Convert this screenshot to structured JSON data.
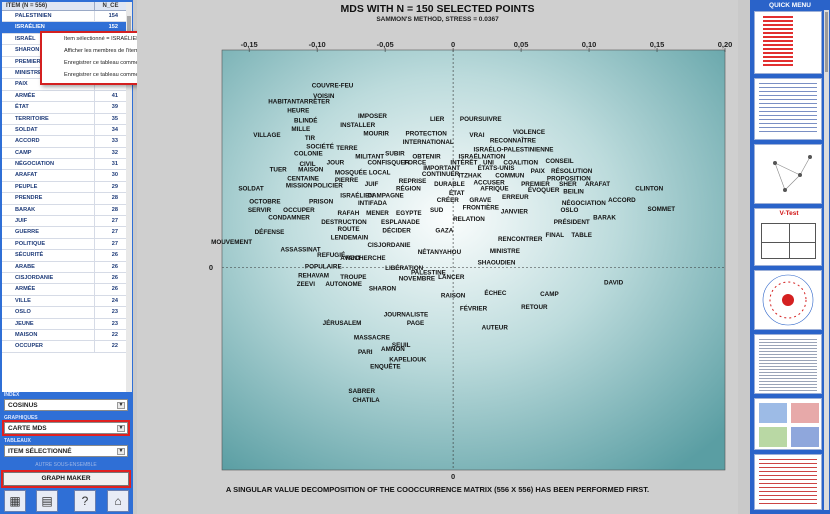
{
  "table": {
    "header_item": "ITEM (N = 556)",
    "header_count": "N_CE",
    "rows": [
      {
        "name": "PALESTINIEN",
        "count": "154"
      },
      {
        "name": "ISRAÉLIEN",
        "count": "152"
      },
      {
        "name": "ISRAËL",
        "count": ""
      },
      {
        "name": "SHARON",
        "count": ""
      },
      {
        "name": "PREMIER",
        "count": ""
      },
      {
        "name": "MINISTRE",
        "count": ""
      },
      {
        "name": "PAIX",
        "count": "46"
      },
      {
        "name": "ARMÉE",
        "count": "41"
      },
      {
        "name": "ÉTAT",
        "count": "39"
      },
      {
        "name": "TERRITOIRE",
        "count": "35"
      },
      {
        "name": "SOLDAT",
        "count": "34"
      },
      {
        "name": "ACCORD",
        "count": "33"
      },
      {
        "name": "CAMP",
        "count": "32"
      },
      {
        "name": "NÉGOCIATION",
        "count": "31"
      },
      {
        "name": "ARAFAT",
        "count": "30"
      },
      {
        "name": "PEUPLE",
        "count": "29"
      },
      {
        "name": "PRENDRE",
        "count": "28"
      },
      {
        "name": "BARAK",
        "count": "28"
      },
      {
        "name": "JUIF",
        "count": "27"
      },
      {
        "name": "GUERRE",
        "count": "27"
      },
      {
        "name": "POLITIQUE",
        "count": "27"
      },
      {
        "name": "SÉCURITÉ",
        "count": "26"
      },
      {
        "name": "ARABE",
        "count": "26"
      },
      {
        "name": "CISJORDANIE",
        "count": "26"
      },
      {
        "name": "ARMÉE",
        "count": "26"
      },
      {
        "name": "VILLE",
        "count": "24"
      },
      {
        "name": "OSLO",
        "count": "23"
      },
      {
        "name": "JEUNE",
        "count": "23"
      },
      {
        "name": "MAISON",
        "count": "22"
      },
      {
        "name": "OCCUPER",
        "count": "22"
      }
    ]
  },
  "context_menu": {
    "items": [
      "Item sélectionné = ISRAÉLIEN",
      "Afficher les membres de l'item sélectionné",
      "Enregistrer ce tableau comme fichier .xls",
      "Enregistrer ce tableau comme fichier .csv"
    ]
  },
  "controls": {
    "index_label": "INDEX",
    "index_value": "COSINUS",
    "graphiques_label": "GRAPHIQUES",
    "graphiques_value": "CARTE MDS",
    "tableaux_label": "TABLEAUX",
    "tableaux_value": "ITEM SÉLECTIONNÉ",
    "autre_label": "AUTRE SOUS-ENSEMBLE",
    "graph_maker": "GRAPH MAKER"
  },
  "quick_menu": {
    "title": "QUICK MENU",
    "vtest_label": "V-Test"
  },
  "chart_data": {
    "type": "scatter",
    "title": "MDS WITH N = 150 SELECTED POINTS",
    "subtitle": "SAMMON'S METHOD,  STRESS = 0.0367",
    "footer": "A SINGULAR VALUE DECOMPOSITION OF THE COOCCURRENCE MATRIX (556 X 556) HAS BEEN PERFORMED FIRST.",
    "x_ticks": [
      "-0,15",
      "-0,10",
      "-0,05",
      "0",
      "0,05",
      "0,10",
      "0,15",
      "0,20"
    ],
    "y_zero_label": "0",
    "xlim": [
      -0.17,
      0.2
    ],
    "ylim": [
      -0.14,
      0.15
    ],
    "points": [
      {
        "label": "COUVRE-FEU",
        "x": -0.104,
        "y": 0.124
      },
      {
        "label": "VOISIN",
        "x": -0.103,
        "y": 0.117
      },
      {
        "label": "HABITANT",
        "x": -0.136,
        "y": 0.113
      },
      {
        "label": "ARRÊTER",
        "x": -0.113,
        "y": 0.113
      },
      {
        "label": "HEURE",
        "x": -0.122,
        "y": 0.107
      },
      {
        "label": "IMPOSER",
        "x": -0.07,
        "y": 0.103
      },
      {
        "label": "LIER",
        "x": -0.017,
        "y": 0.101
      },
      {
        "label": "POURSUIVRE",
        "x": 0.005,
        "y": 0.101
      },
      {
        "label": "BLINDÉ",
        "x": -0.117,
        "y": 0.1
      },
      {
        "label": "INSTALLER",
        "x": -0.083,
        "y": 0.097
      },
      {
        "label": "MILLE",
        "x": -0.119,
        "y": 0.094
      },
      {
        "label": "MOURIR",
        "x": -0.066,
        "y": 0.091
      },
      {
        "label": "PROTECTION",
        "x": -0.035,
        "y": 0.091
      },
      {
        "label": "VRAI",
        "x": 0.012,
        "y": 0.09
      },
      {
        "label": "VIOLENCE",
        "x": 0.044,
        "y": 0.092
      },
      {
        "label": "VILLAGE",
        "x": -0.147,
        "y": 0.09
      },
      {
        "label": "TIR",
        "x": -0.109,
        "y": 0.088
      },
      {
        "label": "RECONNAÎTRE",
        "x": 0.027,
        "y": 0.086
      },
      {
        "label": "INTERNATIONAL",
        "x": -0.037,
        "y": 0.085
      },
      {
        "label": "SOCIÉTÉ",
        "x": -0.108,
        "y": 0.082
      },
      {
        "label": "TERRE",
        "x": -0.086,
        "y": 0.081
      },
      {
        "label": "ISRAÉLO-PALESTINIENNE",
        "x": 0.015,
        "y": 0.08
      },
      {
        "label": "COLONIE",
        "x": -0.117,
        "y": 0.077
      },
      {
        "label": "SUBIR",
        "x": -0.05,
        "y": 0.077
      },
      {
        "label": "ISRAËL",
        "x": 0.004,
        "y": 0.075
      },
      {
        "label": "NATION",
        "x": 0.021,
        "y": 0.075
      },
      {
        "label": "MILITANT",
        "x": -0.072,
        "y": 0.075
      },
      {
        "label": "OBTENIR",
        "x": -0.03,
        "y": 0.075
      },
      {
        "label": "CONSEIL",
        "x": 0.068,
        "y": 0.072
      },
      {
        "label": "CIVIL",
        "x": -0.113,
        "y": 0.07
      },
      {
        "label": "JOUR",
        "x": -0.093,
        "y": 0.071
      },
      {
        "label": "CONFISQUER",
        "x": -0.063,
        "y": 0.071
      },
      {
        "label": "FORCE",
        "x": -0.036,
        "y": 0.071
      },
      {
        "label": "INTÉRÊT",
        "x": -0.002,
        "y": 0.071
      },
      {
        "label": "UNI",
        "x": 0.022,
        "y": 0.071
      },
      {
        "label": "COALITION",
        "x": 0.037,
        "y": 0.071
      },
      {
        "label": "TUER",
        "x": -0.135,
        "y": 0.066
      },
      {
        "label": "MAISON",
        "x": -0.114,
        "y": 0.066
      },
      {
        "label": "IMPORTANT",
        "x": -0.022,
        "y": 0.067
      },
      {
        "label": "ÉTATS-UNIS",
        "x": 0.018,
        "y": 0.067
      },
      {
        "label": "PAIX",
        "x": 0.057,
        "y": 0.065
      },
      {
        "label": "RÉSOLUTION",
        "x": 0.072,
        "y": 0.065
      },
      {
        "label": "MOSQUÉE",
        "x": -0.087,
        "y": 0.064
      },
      {
        "label": "LOCAL",
        "x": -0.062,
        "y": 0.064
      },
      {
        "label": "CONTINUER",
        "x": -0.023,
        "y": 0.063
      },
      {
        "label": "ITZHAK",
        "x": 0.004,
        "y": 0.062
      },
      {
        "label": "COMMUN",
        "x": 0.031,
        "y": 0.062
      },
      {
        "label": "PROPOSITION",
        "x": 0.069,
        "y": 0.06
      },
      {
        "label": "CENTAINE",
        "x": -0.122,
        "y": 0.06
      },
      {
        "label": "PIERRE",
        "x": -0.087,
        "y": 0.059
      },
      {
        "label": "REPRISE",
        "x": -0.04,
        "y": 0.058
      },
      {
        "label": "ACCUSER",
        "x": 0.015,
        "y": 0.057
      },
      {
        "label": "PREMIER",
        "x": 0.05,
        "y": 0.056
      },
      {
        "label": "SHER",
        "x": 0.078,
        "y": 0.056
      },
      {
        "label": "ARAFAT",
        "x": 0.097,
        "y": 0.056
      },
      {
        "label": "MISSION",
        "x": -0.123,
        "y": 0.055
      },
      {
        "label": "POLICIER",
        "x": -0.103,
        "y": 0.055
      },
      {
        "label": "JUIF",
        "x": -0.065,
        "y": 0.056
      },
      {
        "label": "DURABLE",
        "x": -0.014,
        "y": 0.056
      },
      {
        "label": "AFRIQUE",
        "x": 0.02,
        "y": 0.053
      },
      {
        "label": "ÉVOQUER",
        "x": 0.055,
        "y": 0.052
      },
      {
        "label": "BEILIN",
        "x": 0.081,
        "y": 0.051
      },
      {
        "label": "CLINTON",
        "x": 0.134,
        "y": 0.053
      },
      {
        "label": "SOLDAT",
        "x": -0.158,
        "y": 0.053
      },
      {
        "label": "RÉGION",
        "x": -0.042,
        "y": 0.053
      },
      {
        "label": "ÉTAT",
        "x": -0.003,
        "y": 0.05
      },
      {
        "label": "ISRAÉLIEN",
        "x": -0.083,
        "y": 0.048
      },
      {
        "label": "CAMPAGNE",
        "x": -0.063,
        "y": 0.048
      },
      {
        "label": "ERREUR",
        "x": 0.036,
        "y": 0.047
      },
      {
        "label": "OCTOBRE",
        "x": -0.15,
        "y": 0.044
      },
      {
        "label": "PRISON",
        "x": -0.106,
        "y": 0.044
      },
      {
        "label": "INTIFADA",
        "x": -0.07,
        "y": 0.043
      },
      {
        "label": "CRÉER",
        "x": -0.012,
        "y": 0.045
      },
      {
        "label": "GRAVE",
        "x": 0.012,
        "y": 0.045
      },
      {
        "label": "NÉGOCIATION",
        "x": 0.08,
        "y": 0.043
      },
      {
        "label": "ACCORD",
        "x": 0.114,
        "y": 0.045
      },
      {
        "label": "SERVIR",
        "x": -0.151,
        "y": 0.038
      },
      {
        "label": "OCCUPER",
        "x": -0.125,
        "y": 0.038
      },
      {
        "label": "RAFAH",
        "x": -0.085,
        "y": 0.036
      },
      {
        "label": "MENER",
        "x": -0.064,
        "y": 0.036
      },
      {
        "label": "EGYPTE",
        "x": -0.042,
        "y": 0.036
      },
      {
        "label": "SUD",
        "x": -0.017,
        "y": 0.038
      },
      {
        "label": "FRONTIÈRE",
        "x": 0.007,
        "y": 0.04
      },
      {
        "label": "JANVIER",
        "x": 0.035,
        "y": 0.037
      },
      {
        "label": "OSLO",
        "x": 0.079,
        "y": 0.038
      },
      {
        "label": "SOMMET",
        "x": 0.143,
        "y": 0.039
      },
      {
        "label": "CONDAMNER",
        "x": -0.136,
        "y": 0.033
      },
      {
        "label": "DESTRUCTION",
        "x": -0.097,
        "y": 0.03
      },
      {
        "label": "ESPLANADE",
        "x": -0.053,
        "y": 0.03
      },
      {
        "label": "RELATION",
        "x": 0.0,
        "y": 0.032
      },
      {
        "label": "BARAK",
        "x": 0.103,
        "y": 0.033
      },
      {
        "label": "PRÉSIDENT",
        "x": 0.074,
        "y": 0.03
      },
      {
        "label": "DÉFENSE",
        "x": -0.146,
        "y": 0.023
      },
      {
        "label": "ROUTE",
        "x": -0.085,
        "y": 0.025
      },
      {
        "label": "GAZA",
        "x": -0.013,
        "y": 0.024
      },
      {
        "label": "DÉCIDER",
        "x": -0.052,
        "y": 0.024
      },
      {
        "label": "FINAL",
        "x": 0.068,
        "y": 0.021
      },
      {
        "label": "TABLE",
        "x": 0.087,
        "y": 0.021
      },
      {
        "label": "MOUVEMENT",
        "x": -0.178,
        "y": 0.016
      },
      {
        "label": "LENDEMAIN",
        "x": -0.09,
        "y": 0.019
      },
      {
        "label": "RENCONTRER",
        "x": 0.033,
        "y": 0.018
      },
      {
        "label": "ASSASSINAT",
        "x": -0.127,
        "y": 0.011
      },
      {
        "label": "CISJORDANIE",
        "x": -0.063,
        "y": 0.014
      },
      {
        "label": "MINISTRE",
        "x": 0.027,
        "y": 0.01
      },
      {
        "label": "NÉTANYAHOU",
        "x": -0.026,
        "y": 0.009
      },
      {
        "label": "REFUGIÉ",
        "x": -0.1,
        "y": 0.007
      },
      {
        "label": "AVANT",
        "x": -0.083,
        "y": 0.005
      },
      {
        "label": "RECHERCHE",
        "x": -0.079,
        "y": 0.005
      },
      {
        "label": "SHAOUDIEN",
        "x": 0.018,
        "y": 0.002
      },
      {
        "label": "POPULAIRE",
        "x": -0.109,
        "y": -0.001
      },
      {
        "label": "LIBÉRATION",
        "x": -0.05,
        "y": -0.002
      },
      {
        "label": "PALESTINE",
        "x": -0.031,
        "y": -0.005
      },
      {
        "label": "REHAVAM",
        "x": -0.114,
        "y": -0.007
      },
      {
        "label": "TROUPE",
        "x": -0.083,
        "y": -0.008
      },
      {
        "label": "NOVEMBRE",
        "x": -0.04,
        "y": -0.009
      },
      {
        "label": "LANCER",
        "x": -0.011,
        "y": -0.008
      },
      {
        "label": "ZEEVI",
        "x": -0.115,
        "y": -0.013
      },
      {
        "label": "AUTONOME",
        "x": -0.094,
        "y": -0.013
      },
      {
        "label": "SHARON",
        "x": -0.062,
        "y": -0.016
      },
      {
        "label": "ÉCHEC",
        "x": 0.023,
        "y": -0.019
      },
      {
        "label": "CAMP",
        "x": 0.064,
        "y": -0.02
      },
      {
        "label": "DAVID",
        "x": 0.111,
        "y": -0.012
      },
      {
        "label": "RAISON",
        "x": -0.009,
        "y": -0.021
      },
      {
        "label": "RETOUR",
        "x": 0.05,
        "y": -0.029
      },
      {
        "label": "FÉVRIER",
        "x": 0.005,
        "y": -0.03
      },
      {
        "label": "JOURNALISTE",
        "x": -0.051,
        "y": -0.034
      },
      {
        "label": "JÉRUSALEM",
        "x": -0.096,
        "y": -0.04
      },
      {
        "label": "PAGE",
        "x": -0.034,
        "y": -0.04
      },
      {
        "label": "AUTEUR",
        "x": 0.021,
        "y": -0.043
      },
      {
        "label": "MASSACRE",
        "x": -0.073,
        "y": -0.05
      },
      {
        "label": "SEUIL",
        "x": -0.045,
        "y": -0.055
      },
      {
        "label": "AMNON",
        "x": -0.053,
        "y": -0.058
      },
      {
        "label": "PARI",
        "x": -0.07,
        "y": -0.06
      },
      {
        "label": "KAPELIOUK",
        "x": -0.047,
        "y": -0.065
      },
      {
        "label": "ENQUÊTE",
        "x": -0.061,
        "y": -0.07
      },
      {
        "label": "SABRER",
        "x": -0.077,
        "y": -0.087
      },
      {
        "label": "CHATILA",
        "x": -0.074,
        "y": -0.093
      }
    ]
  }
}
